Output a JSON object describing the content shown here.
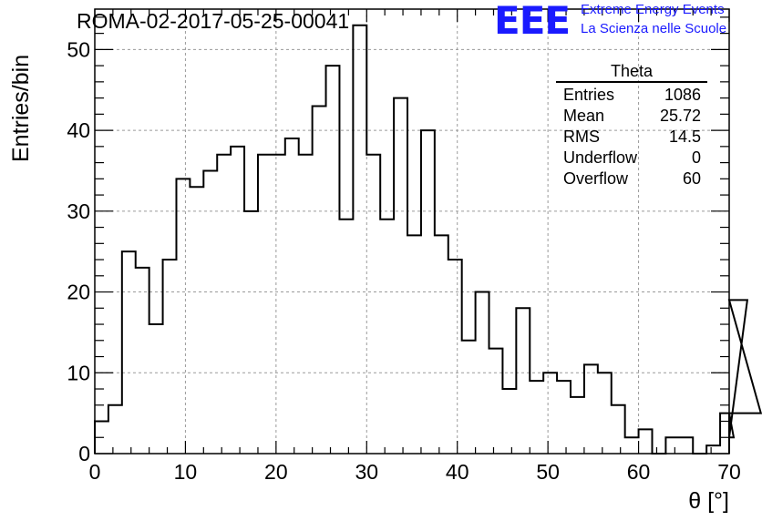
{
  "title": "ROMA-02-2017-05-25-00041",
  "logo": {
    "mark": "EEE",
    "line1": "Extreme Energy Events",
    "line2": "La Scienza nelle Scuole",
    "color": "#1a1aff"
  },
  "stats_box": {
    "title": "Theta",
    "rows": [
      {
        "label": "Entries",
        "value": "1086"
      },
      {
        "label": "Mean",
        "value": "25.72"
      },
      {
        "label": "RMS",
        "value": "14.5"
      },
      {
        "label": "Underflow",
        "value": "0"
      },
      {
        "label": "Overflow",
        "value": "60"
      }
    ]
  },
  "chart_data": {
    "type": "histogram",
    "title": "ROMA-02-2017-05-25-00041",
    "xlabel": "θ [°]",
    "ylabel": "Entries/bin",
    "xlim": [
      0,
      70
    ],
    "ylim": [
      0,
      55
    ],
    "x_ticks": [
      0,
      10,
      20,
      30,
      40,
      50,
      60,
      70
    ],
    "y_ticks": [
      0,
      10,
      20,
      30,
      40,
      50
    ],
    "grid": true,
    "bin_width": 1.5,
    "bin_start": 0,
    "values": [
      4,
      6,
      25,
      23,
      16,
      24,
      34,
      33,
      35,
      37,
      38,
      30,
      37,
      37,
      39,
      37,
      43,
      48,
      29,
      53,
      37,
      29,
      44,
      27,
      40,
      27,
      24,
      14,
      20,
      13,
      8,
      18,
      9,
      10,
      9,
      7,
      11,
      10,
      6,
      2,
      3,
      0,
      2,
      2,
      0,
      1,
      5,
      2,
      19,
      5
    ],
    "line_color": "#000000"
  }
}
